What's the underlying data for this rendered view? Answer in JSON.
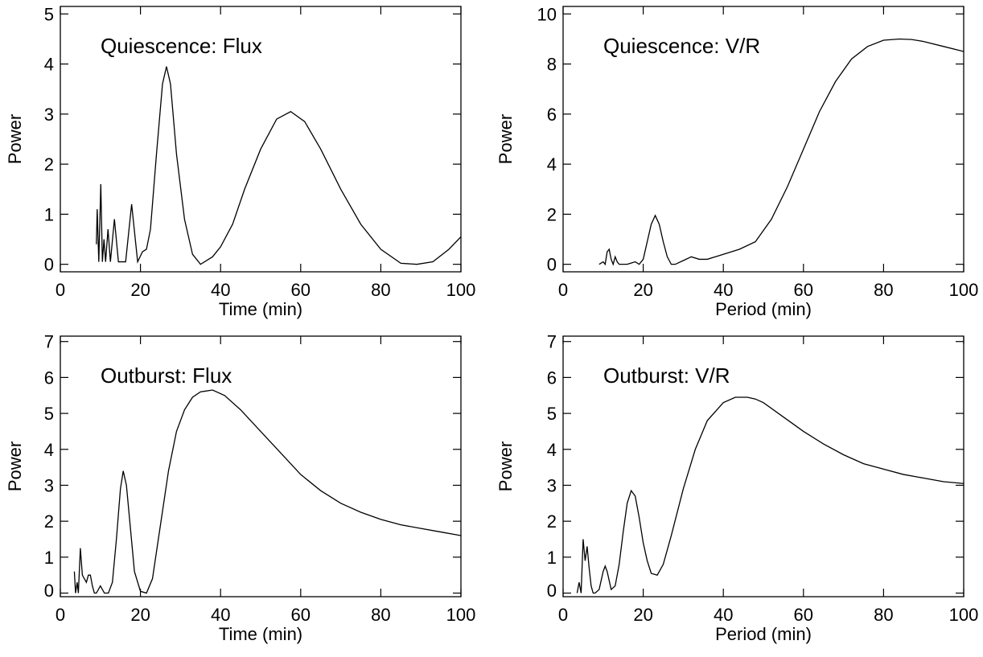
{
  "chart_data": [
    {
      "type": "line",
      "annotation": "Quiescence: Flux",
      "xlabel": "Time (min)",
      "ylabel": "Power",
      "color": "#000000",
      "xlim": [
        0,
        100
      ],
      "xticks": [
        0,
        20,
        40,
        60,
        80,
        100
      ],
      "ylim": [
        -0.15,
        5.15
      ],
      "yticks": [
        0,
        1,
        2,
        3,
        4,
        5
      ],
      "x": [
        9,
        9.2,
        9.6,
        10.1,
        10.5,
        10.9,
        11.3,
        11.9,
        12.5,
        13.5,
        14.5,
        16.3,
        17.8,
        19.3,
        20.5,
        21.5,
        22.5,
        24,
        25.5,
        26.5,
        27.5,
        29,
        31,
        33,
        35,
        38,
        40,
        43,
        46,
        50,
        54,
        57.5,
        61,
        65,
        70,
        75,
        80,
        85,
        89,
        93,
        97,
        100
      ],
      "values": [
        0.4,
        1.1,
        0.05,
        1.6,
        0.05,
        0.5,
        0.05,
        0.7,
        0.05,
        0.9,
        0.05,
        0.05,
        1.2,
        0.05,
        0.25,
        0.3,
        0.7,
        2.2,
        3.6,
        3.95,
        3.6,
        2.2,
        0.9,
        0.2,
        0,
        0.15,
        0.35,
        0.8,
        1.5,
        2.3,
        2.9,
        3.05,
        2.85,
        2.3,
        1.5,
        0.8,
        0.3,
        0.02,
        0,
        0.05,
        0.3,
        0.55
      ]
    },
    {
      "type": "line",
      "annotation": "Quiescence: V/R",
      "xlabel": "Period (min)",
      "ylabel": "Power",
      "color": "#000000",
      "xlim": [
        0,
        100
      ],
      "xticks": [
        0,
        20,
        40,
        60,
        80,
        100
      ],
      "ylim": [
        -0.3,
        10.3
      ],
      "yticks": [
        0,
        2,
        4,
        6,
        8,
        10
      ],
      "x": [
        9,
        10,
        10.5,
        11,
        11.5,
        12,
        12.5,
        13,
        13.5,
        14,
        15,
        16,
        17,
        18,
        19,
        20,
        21,
        22,
        23,
        24,
        25,
        26,
        27,
        28,
        30,
        32,
        34,
        36,
        40,
        44,
        48,
        52,
        56,
        60,
        64,
        68,
        72,
        76,
        80,
        84,
        87,
        90,
        95,
        100
      ],
      "values": [
        0,
        0.1,
        0,
        0.5,
        0.6,
        0.2,
        0,
        0.3,
        0.1,
        0,
        0,
        0,
        0.05,
        0.1,
        0,
        0.2,
        0.9,
        1.6,
        1.95,
        1.6,
        0.9,
        0.3,
        0,
        0,
        0.15,
        0.3,
        0.2,
        0.2,
        0.4,
        0.6,
        0.9,
        1.8,
        3.1,
        4.6,
        6.1,
        7.3,
        8.2,
        8.7,
        8.95,
        9.0,
        8.98,
        8.9,
        8.7,
        8.5
      ]
    },
    {
      "type": "line",
      "annotation": "Outburst: Flux",
      "xlabel": "Time (min)",
      "ylabel": "Power",
      "color": "#000000",
      "xlim": [
        0,
        100
      ],
      "xticks": [
        0,
        20,
        40,
        60,
        80,
        100
      ],
      "ylim": [
        -0.1,
        7.15
      ],
      "yticks": [
        0,
        1,
        2,
        3,
        4,
        5,
        6,
        7
      ],
      "x": [
        3.5,
        3.8,
        4.2,
        4.5,
        5,
        5.5,
        6,
        6.5,
        7,
        7.5,
        8,
        8.5,
        9,
        10,
        10.5,
        11,
        12,
        13,
        14,
        15,
        15.7,
        16.5,
        17.5,
        18.5,
        20,
        21.5,
        23,
        25,
        27,
        29,
        31,
        33,
        35,
        38,
        41,
        45,
        50,
        55,
        60,
        65,
        70,
        75,
        80,
        85,
        90,
        95,
        100
      ],
      "values": [
        0.6,
        0,
        0.3,
        0,
        1.25,
        0.5,
        0.4,
        0.3,
        0.5,
        0.5,
        0.2,
        0,
        0,
        0.2,
        0.1,
        0,
        0,
        0.3,
        1.5,
        2.9,
        3.4,
        3.0,
        1.8,
        0.6,
        0.05,
        0,
        0.4,
        1.9,
        3.4,
        4.5,
        5.1,
        5.45,
        5.6,
        5.65,
        5.5,
        5.1,
        4.5,
        3.9,
        3.3,
        2.85,
        2.5,
        2.25,
        2.05,
        1.9,
        1.8,
        1.7,
        1.6
      ]
    },
    {
      "type": "line",
      "annotation": "Outburst: V/R",
      "xlabel": "Period (min)",
      "ylabel": "Power",
      "color": "#000000",
      "xlim": [
        0,
        100
      ],
      "xticks": [
        0,
        20,
        40,
        60,
        80,
        100
      ],
      "ylim": [
        -0.1,
        7.15
      ],
      "yticks": [
        0,
        1,
        2,
        3,
        4,
        5,
        6,
        7
      ],
      "x": [
        3.5,
        4,
        4.5,
        5,
        5.5,
        6,
        6.5,
        7,
        7.5,
        8,
        9,
        10,
        10.5,
        11,
        12,
        13,
        14,
        15,
        16,
        17,
        18,
        19,
        20,
        21,
        22,
        23.5,
        25,
        27,
        30,
        33,
        36,
        40,
        43,
        46,
        48,
        50,
        55,
        60,
        65,
        70,
        75,
        80,
        85,
        90,
        95,
        100
      ],
      "values": [
        0,
        0.3,
        0,
        1.5,
        0.9,
        1.3,
        0.7,
        0.2,
        0,
        0,
        0.1,
        0.6,
        0.75,
        0.6,
        0.1,
        0.2,
        0.8,
        1.7,
        2.5,
        2.85,
        2.7,
        2.1,
        1.4,
        0.9,
        0.55,
        0.5,
        0.8,
        1.6,
        2.9,
        4.0,
        4.8,
        5.3,
        5.45,
        5.45,
        5.4,
        5.3,
        4.9,
        4.5,
        4.15,
        3.85,
        3.6,
        3.45,
        3.3,
        3.2,
        3.1,
        3.05
      ]
    }
  ]
}
